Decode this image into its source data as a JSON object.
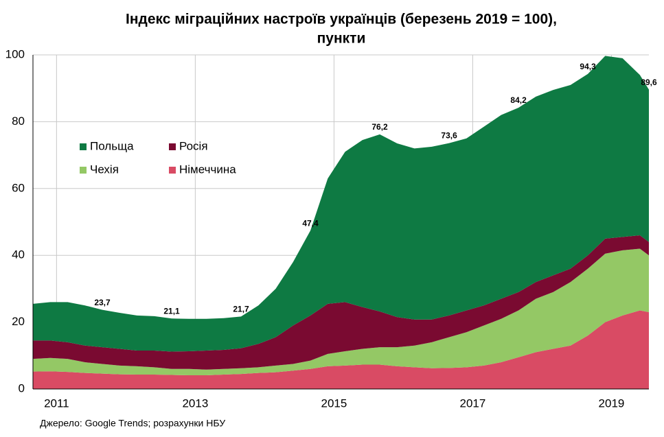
{
  "chart_data": {
    "type": "stacked-area",
    "title": [
      "Індекс міграційних настроїв українців (березень 2019 = 100),",
      "пункти"
    ],
    "source": "Джерело: Google Trends; розрахунки НБУ",
    "x": [
      2010.66,
      2010.91,
      2011.16,
      2011.41,
      2011.66,
      2011.91,
      2012.16,
      2012.41,
      2012.66,
      2012.91,
      2013.16,
      2013.41,
      2013.66,
      2013.91,
      2014.16,
      2014.41,
      2014.66,
      2014.91,
      2015.16,
      2015.41,
      2015.66,
      2015.91,
      2016.16,
      2016.41,
      2016.66,
      2016.91,
      2017.16,
      2017.41,
      2017.66,
      2017.91,
      2018.16,
      2018.41,
      2018.66,
      2018.91,
      2019.16,
      2019.41,
      2019.54
    ],
    "series": [
      {
        "name": "Німеччина",
        "color": "#d94b64",
        "values": [
          5.2,
          5.3,
          5.1,
          4.8,
          4.6,
          4.4,
          4.3,
          4.3,
          4.2,
          4.1,
          4.1,
          4.3,
          4.5,
          4.8,
          5.0,
          5.5,
          6.0,
          6.8,
          7.0,
          7.3,
          7.3,
          6.8,
          6.5,
          6.2,
          6.3,
          6.5,
          7.0,
          8.0,
          9.5,
          11,
          12,
          13,
          16,
          20,
          22,
          23.5,
          23
        ]
      },
      {
        "name": "Чехія",
        "color": "#94c865",
        "values": [
          3.8,
          4.0,
          3.9,
          3.2,
          2.9,
          2.6,
          2.5,
          2.2,
          1.8,
          1.9,
          1.7,
          1.7,
          1.7,
          1.7,
          2.0,
          2.0,
          2.5,
          3.7,
          4.3,
          4.7,
          5.2,
          5.7,
          6.5,
          7.8,
          9.2,
          10.5,
          12.0,
          13.0,
          14.0,
          16,
          17,
          19,
          20,
          20.5,
          19.5,
          18.5,
          17
        ]
      },
      {
        "name": "Росія",
        "color": "#7a0a31",
        "values": [
          5.5,
          5.2,
          5.0,
          5.0,
          5.0,
          5.0,
          4.7,
          5.0,
          5.2,
          5.3,
          5.7,
          5.7,
          6.0,
          7.0,
          8.5,
          11.5,
          13.5,
          15.0,
          14.7,
          12.5,
          10.7,
          9.0,
          7.8,
          6.8,
          6.5,
          6.5,
          6.0,
          6.0,
          5.5,
          5,
          5,
          4,
          4,
          4.5,
          4,
          4,
          4
        ]
      },
      {
        "name": "Польща",
        "color": "#0e7a43",
        "values": [
          11,
          11.5,
          12,
          12,
          11.2,
          10.8,
          10.5,
          10.3,
          9.9,
          9.7,
          9.5,
          9.5,
          9.5,
          11.5,
          14.5,
          19,
          25.4,
          37.5,
          45,
          50,
          53,
          52,
          51.2,
          51.7,
          51.6,
          51.5,
          53.5,
          55,
          55.2,
          55.5,
          55.5,
          55,
          54.3,
          54.7,
          53.5,
          48,
          45.6
        ]
      }
    ],
    "annotations": [
      {
        "x": 2011.66,
        "y": 23.7,
        "label": "23,7"
      },
      {
        "x": 2012.66,
        "y": 21.1,
        "label": "21,1"
      },
      {
        "x": 2013.66,
        "y": 21.7,
        "label": "21,7"
      },
      {
        "x": 2014.66,
        "y": 47.4,
        "label": "47,4"
      },
      {
        "x": 2015.66,
        "y": 76.2,
        "label": "76,2"
      },
      {
        "x": 2016.66,
        "y": 73.6,
        "label": "73,6"
      },
      {
        "x": 2017.66,
        "y": 84.2,
        "label": "84,2"
      },
      {
        "x": 2018.66,
        "y": 94.3,
        "label": "94,3"
      },
      {
        "x": 2019.54,
        "y": 89.6,
        "label": "89,6"
      }
    ],
    "xlim": [
      2010.66,
      2019.54
    ],
    "xticks": [
      2011,
      2013,
      2015,
      2017,
      2019
    ],
    "ylim": [
      0,
      100
    ],
    "yticks": [
      0,
      20,
      40,
      60,
      80,
      100
    ],
    "grid": true
  }
}
